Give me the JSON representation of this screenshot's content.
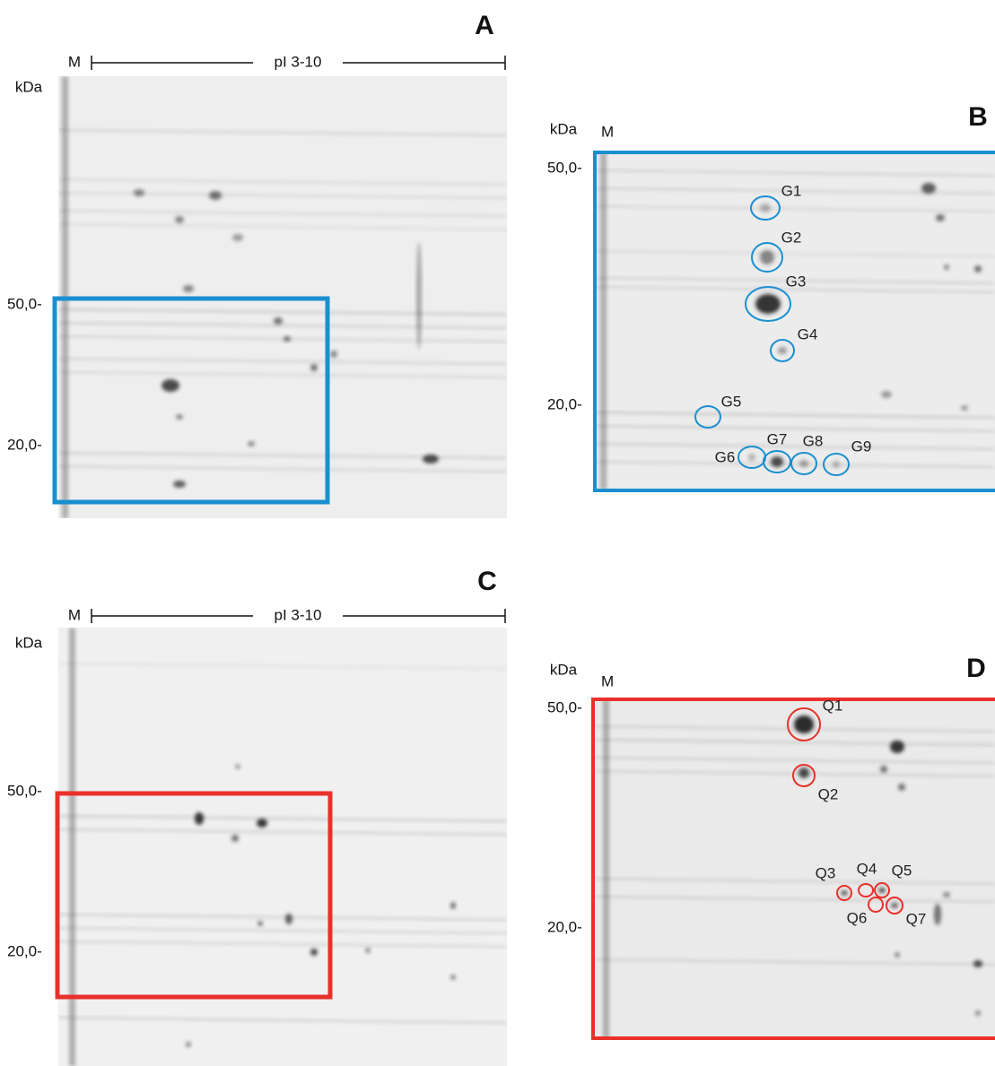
{
  "panels": [
    {
      "letter": "A",
      "marker": "M",
      "range": "pI 3-10",
      "unit": "kDa",
      "mw_labels": [
        "50,0-",
        "20,0-"
      ]
    },
    {
      "letter": "B",
      "marker": "M",
      "unit": "kDa",
      "mw_labels": [
        "50,0-",
        "20,0-"
      ],
      "spots": [
        "G1",
        "G2",
        "G3",
        "G4",
        "G5",
        "G6",
        "G7",
        "G8",
        "G9"
      ]
    },
    {
      "letter": "C",
      "marker": "M",
      "range": "pI 3-10",
      "unit": "kDa",
      "mw_labels": [
        "50,0-",
        "20,0-"
      ]
    },
    {
      "letter": "D",
      "marker": "M",
      "unit": "kDa",
      "mw_labels": [
        "50,0-",
        "20,0-"
      ],
      "spots": [
        "Q1",
        "Q2",
        "Q3",
        "Q4",
        "Q5",
        "Q6",
        "Q7"
      ]
    }
  ]
}
